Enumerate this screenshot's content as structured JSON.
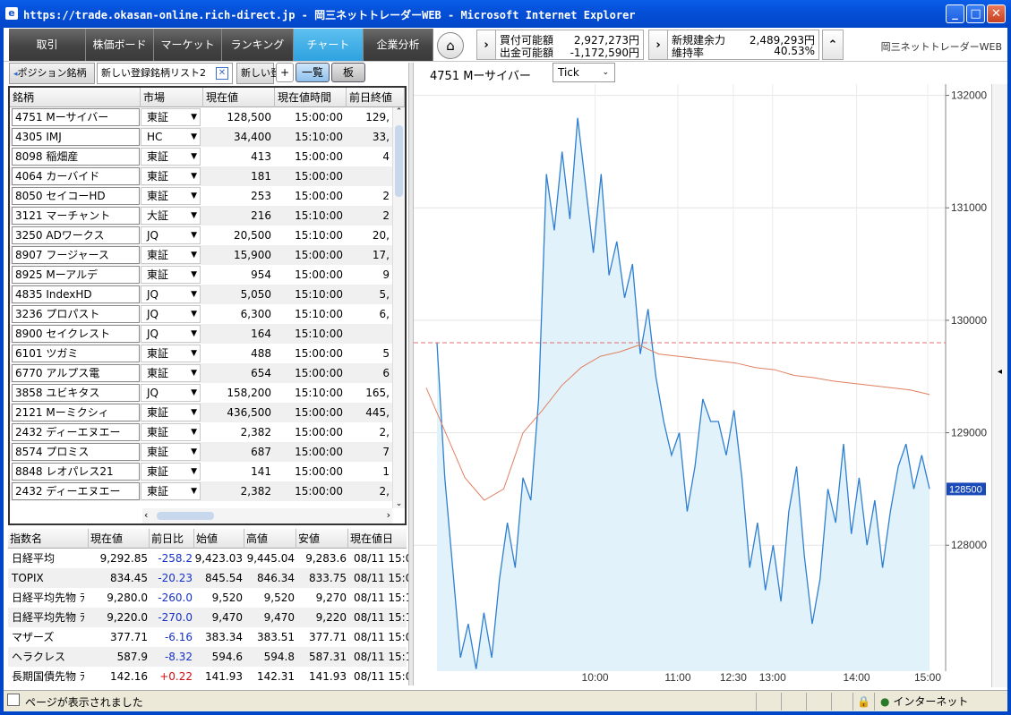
{
  "window": {
    "title": "https://trade.okasan-online.rich-direct.jp - 岡三ネットトレーダーWEB - Microsoft Internet Explorer",
    "min": "_",
    "max": "□",
    "close": "✕"
  },
  "nav": {
    "tabs": [
      "取引",
      "株価ボード",
      "マーケット",
      "ランキング",
      "チャート",
      "企業分析"
    ],
    "active": "チャート",
    "account": [
      {
        "label": "買付可能額",
        "value": "2,927,273円"
      },
      {
        "label": "出金可能額",
        "value": "-1,172,590円"
      },
      {
        "label": "新規建余力",
        "value": "2,489,293円"
      },
      {
        "label": "維持率",
        "value": "40.53%"
      }
    ],
    "brand": "岡三ネットトレーダーWEB"
  },
  "left": {
    "tabs": [
      "ポジション銘柄",
      "新しい登録銘柄リスト2",
      "新しい登"
    ],
    "plus": "+",
    "list_btn": "一覧",
    "board_btn": "板",
    "columns": [
      "銘柄",
      "市場",
      "現在値",
      "現在値時間",
      "前日終値"
    ],
    "rows": [
      {
        "name": "4751 Mーサイバー",
        "market": "東証",
        "price": "128,500",
        "time": "15:00:00",
        "prev": "129,"
      },
      {
        "name": "4305 IMJ",
        "market": "HC",
        "price": "34,400",
        "time": "15:10:00",
        "prev": "33,"
      },
      {
        "name": "8098 稲畑産",
        "market": "東証",
        "price": "413",
        "time": "15:00:00",
        "prev": "4"
      },
      {
        "name": "4064 カーバイド",
        "market": "東証",
        "price": "181",
        "time": "15:00:00",
        "prev": ""
      },
      {
        "name": "8050 セイコーHD",
        "market": "東証",
        "price": "253",
        "time": "15:00:00",
        "prev": "2"
      },
      {
        "name": "3121 マーチャント",
        "market": "大証",
        "price": "216",
        "time": "15:10:00",
        "prev": "2"
      },
      {
        "name": "3250 ADワークス",
        "market": "JQ",
        "price": "20,500",
        "time": "15:10:00",
        "prev": "20,"
      },
      {
        "name": "8907 フージャース",
        "market": "東証",
        "price": "15,900",
        "time": "15:00:00",
        "prev": "17,"
      },
      {
        "name": "8925 Mーアルデ",
        "market": "東証",
        "price": "954",
        "time": "15:00:00",
        "prev": "9"
      },
      {
        "name": "4835 IndexHD",
        "market": "JQ",
        "price": "5,050",
        "time": "15:10:00",
        "prev": "5,"
      },
      {
        "name": "3236 プロパスト",
        "market": "JQ",
        "price": "6,300",
        "time": "15:10:00",
        "prev": "6,"
      },
      {
        "name": "8900 セイクレスト",
        "market": "JQ",
        "price": "164",
        "time": "15:10:00",
        "prev": ""
      },
      {
        "name": "6101 ツガミ",
        "market": "東証",
        "price": "488",
        "time": "15:00:00",
        "prev": "5"
      },
      {
        "name": "6770 アルプス電",
        "market": "東証",
        "price": "654",
        "time": "15:00:00",
        "prev": "6"
      },
      {
        "name": "3858 ユビキタス",
        "market": "JQ",
        "price": "158,200",
        "time": "15:10:00",
        "prev": "165,"
      },
      {
        "name": "2121 Mーミクシィ",
        "market": "東証",
        "price": "436,500",
        "time": "15:00:00",
        "prev": "445,"
      },
      {
        "name": "2432 ディーエヌエー",
        "market": "東証",
        "price": "2,382",
        "time": "15:00:00",
        "prev": "2,"
      },
      {
        "name": "8574 プロミス",
        "market": "東証",
        "price": "687",
        "time": "15:00:00",
        "prev": "7"
      },
      {
        "name": "8848 レオパレス21",
        "market": "東証",
        "price": "141",
        "time": "15:00:00",
        "prev": "1"
      },
      {
        "name": "2432 ディーエヌエー",
        "market": "東証",
        "price": "2,382",
        "time": "15:00:00",
        "prev": "2,"
      }
    ],
    "index_columns": [
      "指数名",
      "現在値",
      "前日比",
      "始値",
      "高値",
      "安値",
      "現在値日"
    ],
    "indices": [
      {
        "name": "日経平均",
        "price": "9,292.85",
        "chg": "-258.2",
        "open": "9,423.03",
        "high": "9,445.04",
        "low": "9,283.6",
        "dt": "08/11 15:0"
      },
      {
        "name": "TOPIX",
        "price": "834.45",
        "chg": "-20.23",
        "open": "845.54",
        "high": "846.34",
        "low": "833.75",
        "dt": "08/11 15:0"
      },
      {
        "name": "日経平均先物 ﾗ",
        "price": "9,280.0",
        "chg": "-260.0",
        "open": "9,520",
        "high": "9,520",
        "low": "9,270",
        "dt": "08/11 15:1"
      },
      {
        "name": "日経平均先物 ﾗ",
        "price": "9,220.0",
        "chg": "-270.0",
        "open": "9,470",
        "high": "9,470",
        "low": "9,220",
        "dt": "08/11 15:1"
      },
      {
        "name": "マザーズ",
        "price": "377.71",
        "chg": "-6.16",
        "open": "383.34",
        "high": "383.51",
        "low": "377.71",
        "dt": "08/11 15:0"
      },
      {
        "name": "ヘラクレス",
        "price": "587.9",
        "chg": "-8.32",
        "open": "594.6",
        "high": "594.8",
        "low": "587.31",
        "dt": "08/11 15:1"
      },
      {
        "name": "長期国債先物 ﾗ",
        "price": "142.16",
        "chg": "+0.22",
        "open": "141.93",
        "high": "142.31",
        "low": "141.93",
        "dt": "08/11 15:0"
      }
    ]
  },
  "chart": {
    "title": "4751 Mーサイバー",
    "interval": "Tick",
    "last_price_label": "128500"
  },
  "chart_data": {
    "type": "area",
    "title": "4751 Mーサイバー",
    "x_ticks": [
      "10:00",
      "11:00",
      "12:30",
      "13:00",
      "14:00",
      "15:00"
    ],
    "y_ticks": [
      132000,
      131000,
      130000,
      129000,
      128000
    ],
    "ylim": [
      126880,
      132100
    ],
    "prev_close": 129800,
    "last": 128500,
    "series": [
      {
        "values": [
          129800,
          128600,
          127800,
          127000,
          127300,
          126900,
          127400,
          127000,
          127700,
          128200,
          127800,
          128600,
          128400,
          129300,
          131300,
          130800,
          131500,
          130900,
          131800,
          131200,
          130600,
          131300,
          130400,
          130700,
          130200,
          130500,
          129700,
          130100,
          129500,
          129100,
          128800,
          129000,
          128300,
          128700,
          129300,
          129100,
          129100,
          128800,
          129200,
          128600,
          127800,
          128200,
          127600,
          128000,
          127500,
          128300,
          128700,
          127900,
          127300,
          127700,
          128500,
          128200,
          128900,
          128100,
          128600,
          128000,
          128400,
          127800,
          128300,
          128700,
          128900,
          128500,
          128800,
          128500
        ]
      },
      {
        "values": [
          129400,
          129000,
          128600,
          128400,
          128500,
          129000,
          129200,
          129420,
          129580,
          129680,
          129720,
          129780,
          129700,
          129680,
          129660,
          129640,
          129620,
          129580,
          129560,
          129510,
          129490,
          129460,
          129440,
          129420,
          129400,
          129380,
          129340
        ]
      }
    ]
  },
  "status": {
    "text": "ページが表示されました",
    "zone": "インターネット"
  }
}
